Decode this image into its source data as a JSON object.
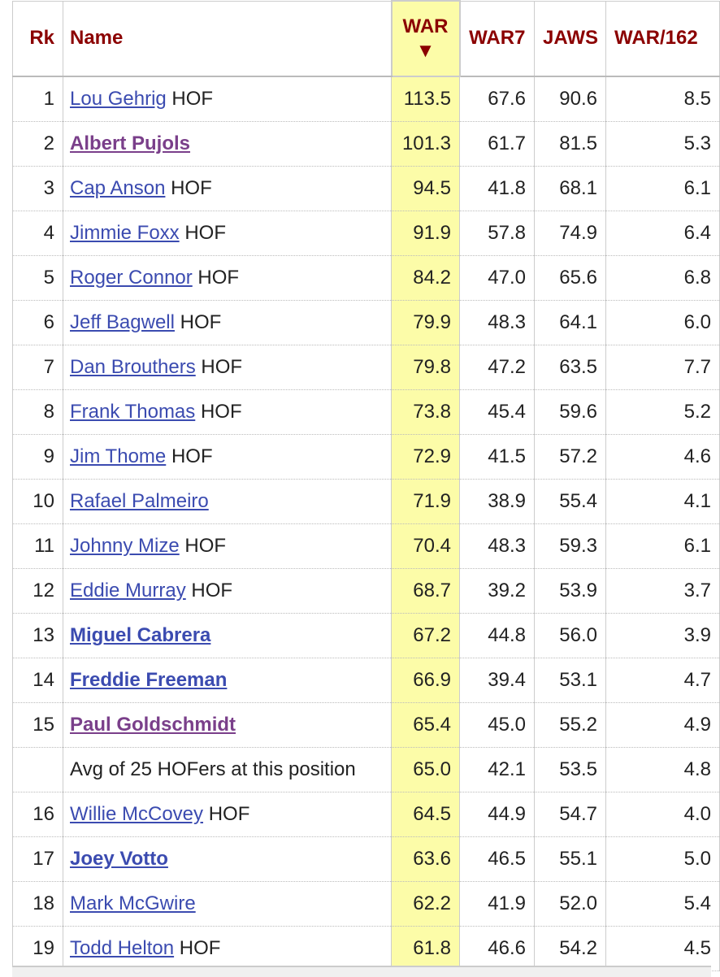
{
  "table": {
    "header": [
      "Rk",
      "Name",
      "WAR",
      "WAR7",
      "JAWS",
      "WAR/162"
    ],
    "rows": [
      {
        "rk": "1",
        "name": "Lou Gehrig",
        "hof": "HOF",
        "link": "plain",
        "war": "113.5",
        "war7": "67.6",
        "jaws": "90.6",
        "war162": "8.5"
      },
      {
        "rk": "2",
        "name": "Albert Pujols",
        "link": "bold-visited",
        "war": "101.3",
        "war7": "61.7",
        "jaws": "81.5",
        "war162": "5.3"
      },
      {
        "rk": "3",
        "name": "Cap Anson",
        "hof": "HOF",
        "link": "plain",
        "war": "94.5",
        "war7": "41.8",
        "jaws": "68.1",
        "war162": "6.1"
      },
      {
        "rk": "4",
        "name": "Jimmie Foxx",
        "hof": "HOF",
        "link": "plain",
        "war": "91.9",
        "war7": "57.8",
        "jaws": "74.9",
        "war162": "6.4"
      },
      {
        "rk": "5",
        "name": "Roger Connor",
        "hof": "HOF",
        "link": "plain",
        "war": "84.2",
        "war7": "47.0",
        "jaws": "65.6",
        "war162": "6.8"
      },
      {
        "rk": "6",
        "name": "Jeff Bagwell",
        "hof": "HOF",
        "link": "plain",
        "war": "79.9",
        "war7": "48.3",
        "jaws": "64.1",
        "war162": "6.0"
      },
      {
        "rk": "7",
        "name": "Dan Brouthers",
        "hof": "HOF",
        "link": "plain",
        "war": "79.8",
        "war7": "47.2",
        "jaws": "63.5",
        "war162": "7.7"
      },
      {
        "rk": "8",
        "name": "Frank Thomas",
        "hof": "HOF",
        "link": "plain",
        "war": "73.8",
        "war7": "45.4",
        "jaws": "59.6",
        "war162": "5.2"
      },
      {
        "rk": "9",
        "name": "Jim Thome",
        "hof": "HOF",
        "link": "plain",
        "war": "72.9",
        "war7": "41.5",
        "jaws": "57.2",
        "war162": "4.6"
      },
      {
        "rk": "10",
        "name": "Rafael Palmeiro",
        "link": "plain",
        "war": "71.9",
        "war7": "38.9",
        "jaws": "55.4",
        "war162": "4.1"
      },
      {
        "rk": "11",
        "name": "Johnny Mize",
        "hof": "HOF",
        "link": "plain",
        "war": "70.4",
        "war7": "48.3",
        "jaws": "59.3",
        "war162": "6.1"
      },
      {
        "rk": "12",
        "name": "Eddie Murray",
        "hof": "HOF",
        "link": "plain",
        "war": "68.7",
        "war7": "39.2",
        "jaws": "53.9",
        "war162": "3.7"
      },
      {
        "rk": "13",
        "name": "Miguel Cabrera",
        "link": "bold",
        "war": "67.2",
        "war7": "44.8",
        "jaws": "56.0",
        "war162": "3.9"
      },
      {
        "rk": "14",
        "name": "Freddie Freeman",
        "link": "bold",
        "war": "66.9",
        "war7": "39.4",
        "jaws": "53.1",
        "war162": "4.7"
      },
      {
        "rk": "15",
        "name": "Paul Goldschmidt",
        "link": "bold-visited",
        "war": "65.4",
        "war7": "45.0",
        "jaws": "55.2",
        "war162": "4.9"
      },
      {
        "name": "Avg of 25 HOFers at this position",
        "link": "none",
        "war": "65.0",
        "war7": "42.1",
        "jaws": "53.5",
        "war162": "4.8"
      },
      {
        "rk": "16",
        "name": "Willie McCovey",
        "hof": "HOF",
        "link": "plain",
        "war": "64.5",
        "war7": "44.9",
        "jaws": "54.7",
        "war162": "4.0"
      },
      {
        "rk": "17",
        "name": "Joey Votto",
        "link": "bold",
        "war": "63.6",
        "war7": "46.5",
        "jaws": "55.1",
        "war162": "5.0"
      },
      {
        "rk": "18",
        "name": "Mark McGwire",
        "link": "plain",
        "war": "62.2",
        "war7": "41.9",
        "jaws": "52.0",
        "war162": "5.4"
      },
      {
        "rk": "19",
        "name": "Todd Helton",
        "hof": "HOF",
        "link": "plain",
        "war": "61.8",
        "war7": "46.6",
        "jaws": "54.2",
        "war162": "4.5"
      }
    ]
  }
}
